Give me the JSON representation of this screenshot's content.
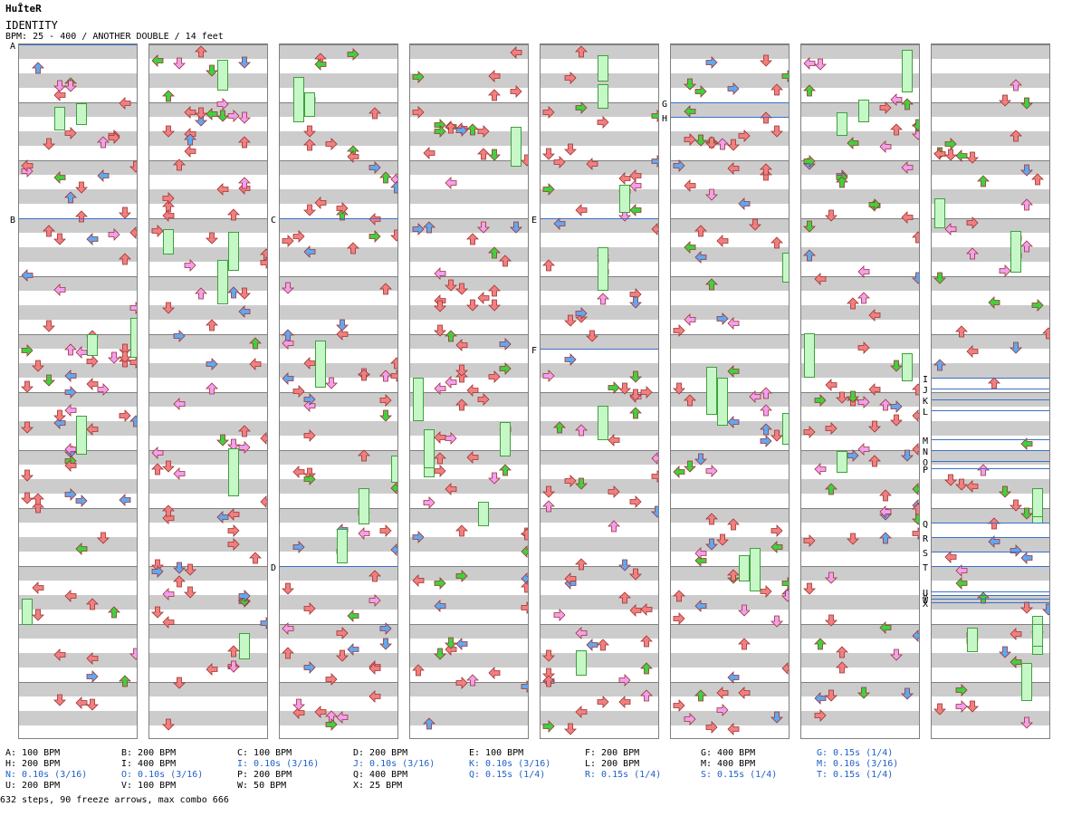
{
  "header": {
    "logo": "HuÎteR",
    "title": "IDENTITY",
    "info": "BPM: 25 - 400 / ANOTHER DOUBLE / 14 feet"
  },
  "colors": {
    "red": "#f08080",
    "green": "#40d040",
    "blue": "#60a8f0",
    "pink": "#f0a0f0",
    "yellow": "#f0f060",
    "bpm_line": "#3a6fc9"
  },
  "section_labels": [
    "A",
    "B",
    "C",
    "D",
    "E",
    "F",
    "G",
    "H",
    "I",
    "J",
    "K",
    "L",
    "M",
    "N",
    "O",
    "P",
    "Q",
    "R",
    "S",
    "T",
    "U",
    "V",
    "W",
    "X"
  ],
  "legend_rows": [
    [
      {
        "text": "A: 100 BPM",
        "blue": false
      },
      {
        "text": "B: 200 BPM",
        "blue": false
      },
      {
        "text": "C: 100 BPM",
        "blue": false
      },
      {
        "text": "D: 200 BPM",
        "blue": false
      },
      {
        "text": "E: 100 BPM",
        "blue": false
      },
      {
        "text": "F: 200 BPM",
        "blue": false
      },
      {
        "text": "G: 400 BPM",
        "blue": false
      },
      {
        "text": "G: 0.15s (1/4)",
        "blue": true
      }
    ],
    [
      {
        "text": "H: 200 BPM",
        "blue": false
      },
      {
        "text": "I: 400 BPM",
        "blue": false
      },
      {
        "text": "I: 0.10s (3/16)",
        "blue": true
      },
      {
        "text": "J: 0.10s (3/16)",
        "blue": true
      },
      {
        "text": "K: 0.10s (3/16)",
        "blue": true
      },
      {
        "text": "L: 200 BPM",
        "blue": false
      },
      {
        "text": "M: 400 BPM",
        "blue": false
      },
      {
        "text": "M: 0.10s (3/16)",
        "blue": true
      }
    ],
    [
      {
        "text": "N: 0.10s (3/16)",
        "blue": true
      },
      {
        "text": "O: 0.10s (3/16)",
        "blue": true
      },
      {
        "text": "P: 200 BPM",
        "blue": false
      },
      {
        "text": "Q: 400 BPM",
        "blue": false
      },
      {
        "text": "Q: 0.15s (1/4)",
        "blue": true
      },
      {
        "text": "R: 0.15s (1/4)",
        "blue": true
      },
      {
        "text": "S: 0.15s (1/4)",
        "blue": true
      },
      {
        "text": "T: 0.15s (1/4)",
        "blue": true
      }
    ],
    [
      {
        "text": "U: 200 BPM",
        "blue": false
      },
      {
        "text": "V: 100 BPM",
        "blue": false
      },
      {
        "text": "W: 50 BPM",
        "blue": false
      },
      {
        "text": "X: 25 BPM",
        "blue": false
      }
    ]
  ],
  "footer": "632 steps, 90 freeze arrows, max combo 666"
}
